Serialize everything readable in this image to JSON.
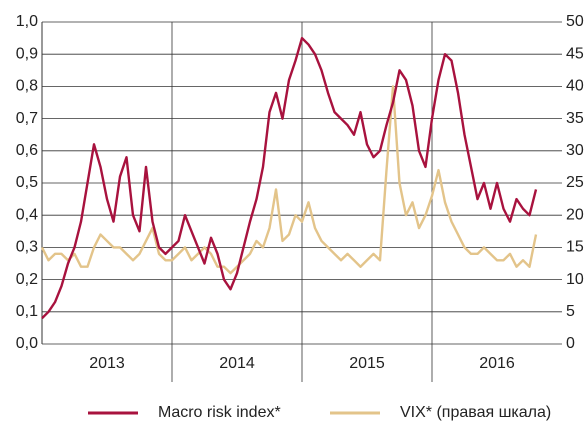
{
  "chart_data": {
    "type": "line",
    "categories": [
      "2013",
      "2014",
      "2015",
      "2016"
    ],
    "x": [
      2013,
      2013.05,
      2013.1,
      2013.15,
      2013.2,
      2013.25,
      2013.3,
      2013.35,
      2013.4,
      2013.45,
      2013.5,
      2013.55,
      2013.6,
      2013.65,
      2013.7,
      2013.75,
      2013.8,
      2013.85,
      2013.9,
      2013.95,
      2014,
      2014.05,
      2014.1,
      2014.15,
      2014.2,
      2014.25,
      2014.3,
      2014.35,
      2014.4,
      2014.45,
      2014.5,
      2014.55,
      2014.6,
      2014.65,
      2014.7,
      2014.75,
      2014.8,
      2014.85,
      2014.9,
      2014.95,
      2015,
      2015.05,
      2015.1,
      2015.15,
      2015.2,
      2015.25,
      2015.3,
      2015.35,
      2015.4,
      2015.45,
      2015.5,
      2015.55,
      2015.6,
      2015.65,
      2015.7,
      2015.75,
      2015.8,
      2015.85,
      2015.9,
      2015.95,
      2016,
      2016.05,
      2016.1,
      2016.15,
      2016.2,
      2016.25,
      2016.3,
      2016.35,
      2016.4,
      2016.45,
      2016.5,
      2016.55,
      2016.6,
      2016.65,
      2016.7,
      2016.75,
      2016.8
    ],
    "xlim": [
      2013,
      2017
    ],
    "xticks": [
      2014,
      2015,
      2016
    ],
    "ylim": [
      0,
      1
    ],
    "yticks": [
      {
        "value": 0,
        "label": "0,0"
      },
      {
        "value": 0.1,
        "label": "0,1"
      },
      {
        "value": 0.2,
        "label": "0,2"
      },
      {
        "value": 0.3,
        "label": "0,3"
      },
      {
        "value": 0.4,
        "label": "0,4"
      },
      {
        "value": 0.5,
        "label": "0,5"
      },
      {
        "value": 0.6,
        "label": "0,6"
      },
      {
        "value": 0.7,
        "label": "0,7"
      },
      {
        "value": 0.8,
        "label": "0,8"
      },
      {
        "value": 0.9,
        "label": "0,9"
      },
      {
        "value": 1,
        "label": "1,0"
      }
    ],
    "y2lim": [
      0,
      50
    ],
    "y2ticks": [
      0,
      5,
      10,
      15,
      20,
      25,
      30,
      35,
      40,
      45,
      50
    ],
    "grid": true,
    "legend": "bottom",
    "series": [
      {
        "name": "Macro risk index*",
        "color": "#a8123e",
        "values": [
          0.08,
          0.1,
          0.13,
          0.18,
          0.25,
          0.3,
          0.38,
          0.5,
          0.62,
          0.55,
          0.45,
          0.38,
          0.52,
          0.58,
          0.4,
          0.35,
          0.55,
          0.38,
          0.3,
          0.28,
          0.3,
          0.32,
          0.4,
          0.35,
          0.3,
          0.25,
          0.33,
          0.28,
          0.2,
          0.17,
          0.22,
          0.3,
          0.38,
          0.45,
          0.55,
          0.72,
          0.78,
          0.7,
          0.82,
          0.88,
          0.95,
          0.93,
          0.9,
          0.85,
          0.78,
          0.72,
          0.7,
          0.68,
          0.65,
          0.72,
          0.62,
          0.58,
          0.6,
          0.68,
          0.75,
          0.85,
          0.82,
          0.74,
          0.6,
          0.55,
          0.7,
          0.82,
          0.9,
          0.88,
          0.78,
          0.65,
          0.55,
          0.45,
          0.5,
          0.42,
          0.5,
          0.42,
          0.38,
          0.45,
          0.42,
          0.4,
          0.48
        ]
      },
      {
        "name": "VIX* (правая шкала)",
        "color": "#e3c48a",
        "axis": "y2",
        "values": [
          15,
          13,
          14,
          14,
          13,
          14,
          12,
          12,
          15,
          17,
          16,
          15,
          15,
          14,
          13,
          14,
          16,
          18,
          14,
          13,
          13,
          14,
          15,
          13,
          14,
          15,
          14,
          12,
          12,
          11,
          12,
          13,
          14,
          16,
          15,
          18,
          24,
          16,
          17,
          20,
          19,
          22,
          18,
          16,
          15,
          14,
          13,
          14,
          13,
          12,
          13,
          14,
          13,
          27,
          40,
          25,
          20,
          22,
          18,
          20,
          23,
          27,
          22,
          19,
          17,
          15,
          14,
          14,
          15,
          14,
          13,
          13,
          14,
          12,
          13,
          12,
          17
        ]
      }
    ]
  }
}
